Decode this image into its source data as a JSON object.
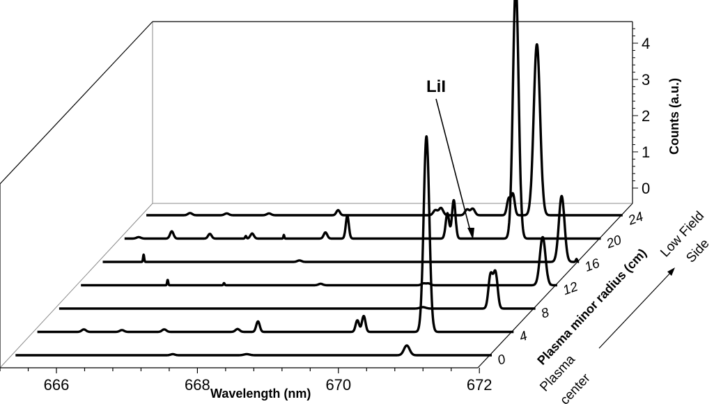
{
  "chart_data": {
    "type": "line",
    "subtype": "3d-waterfall",
    "title": "",
    "xlabel": "Wavelength (nm)",
    "ylabel": "Plasma minor radius (cm)",
    "zlabel": "Counts (a.u.)",
    "x_ticks": [
      "666",
      "668",
      "670",
      "672"
    ],
    "y_ticks": [
      "0",
      "4",
      "8",
      "12",
      "16",
      "20",
      "24"
    ],
    "z_ticks": [
      "0",
      "1",
      "2",
      "3",
      "4"
    ],
    "xlim": [
      665.2,
      672.0
    ],
    "zlim": [
      0,
      4.4
    ],
    "grid": false,
    "legend": null,
    "annotations": [
      {
        "text": "LiI",
        "points_to": {
          "radius": 12,
          "wavelength": 671.0
        }
      },
      {
        "text": "Low Field Side",
        "position": "upper end of radius axis"
      },
      {
        "text": "Plasma center",
        "position": "lower end of radius axis"
      }
    ],
    "series": [
      {
        "name": "0",
        "radius": 0,
        "peaks": [
          {
            "x": 667.65,
            "h": 0.03,
            "w": 0.03
          },
          {
            "x": 668.7,
            "h": 0.03,
            "w": 0.04
          },
          {
            "x": 670.97,
            "h": 0.27,
            "w": 0.04
          }
        ]
      },
      {
        "name": "4",
        "radius": 4,
        "peaks": [
          {
            "x": 666.08,
            "h": 0.07,
            "w": 0.03
          },
          {
            "x": 666.62,
            "h": 0.05,
            "w": 0.03
          },
          {
            "x": 667.22,
            "h": 0.07,
            "w": 0.03
          },
          {
            "x": 668.26,
            "h": 0.08,
            "w": 0.03
          },
          {
            "x": 668.55,
            "h": 0.29,
            "w": 0.025
          },
          {
            "x": 669.96,
            "h": 0.32,
            "w": 0.025
          },
          {
            "x": 670.05,
            "h": 0.44,
            "w": 0.025
          },
          {
            "x": 670.94,
            "h": 5.4,
            "w": 0.04
          }
        ]
      },
      {
        "name": "8",
        "radius": 8,
        "peaks": [
          {
            "x": 670.58,
            "h": 0.04,
            "w": 0.04
          },
          {
            "x": 671.54,
            "h": 0.92,
            "w": 0.03
          },
          {
            "x": 671.61,
            "h": 0.98,
            "w": 0.03
          }
        ]
      },
      {
        "name": "12",
        "radius": 12,
        "peaks": [
          {
            "x": 666.65,
            "h": 0.15,
            "w": 0.008
          },
          {
            "x": 667.45,
            "h": 0.06,
            "w": 0.008
          },
          {
            "x": 668.82,
            "h": 0.04,
            "w": 0.03
          },
          {
            "x": 670.28,
            "h": 0.05,
            "w": 0.03
          },
          {
            "x": 670.35,
            "h": 0.05,
            "w": 0.03
          },
          {
            "x": 671.97,
            "h": 1.33,
            "w": 0.04
          }
        ]
      },
      {
        "name": "16",
        "radius": 16,
        "peaks": [
          {
            "x": 666.0,
            "h": 0.2,
            "w": 0.008
          },
          {
            "x": 668.21,
            "h": 0.04,
            "w": 0.03
          },
          {
            "x": 671.93,
            "h": 1.82,
            "w": 0.04
          },
          {
            "x": 672.14,
            "h": 0.08,
            "w": 0.01
          }
        ]
      },
      {
        "name": "20",
        "radius": 20,
        "peaks": [
          {
            "x": 665.62,
            "h": 0.04,
            "w": 0.03
          },
          {
            "x": 666.09,
            "h": 0.2,
            "w": 0.025
          },
          {
            "x": 666.63,
            "h": 0.13,
            "w": 0.025
          },
          {
            "x": 667.14,
            "h": 0.07,
            "w": 0.01
          },
          {
            "x": 667.23,
            "h": 0.14,
            "w": 0.025
          },
          {
            "x": 667.68,
            "h": 0.1,
            "w": 0.007
          },
          {
            "x": 668.27,
            "h": 0.17,
            "w": 0.025
          },
          {
            "x": 668.58,
            "h": 0.63,
            "w": 0.022
          },
          {
            "x": 670.0,
            "h": 0.7,
            "w": 0.025
          },
          {
            "x": 670.09,
            "h": 1.06,
            "w": 0.025
          },
          {
            "x": 670.97,
            "h": 7.0,
            "w": 0.04
          }
        ]
      },
      {
        "name": "24",
        "radius": 24,
        "peaks": [
          {
            "x": 666.04,
            "h": 0.06,
            "w": 0.03
          },
          {
            "x": 666.56,
            "h": 0.05,
            "w": 0.03
          },
          {
            "x": 667.16,
            "h": 0.05,
            "w": 0.03
          },
          {
            "x": 668.14,
            "h": 0.14,
            "w": 0.025
          },
          {
            "x": 669.52,
            "h": 0.14,
            "w": 0.03
          },
          {
            "x": 669.6,
            "h": 0.2,
            "w": 0.03
          },
          {
            "x": 669.97,
            "h": 0.16,
            "w": 0.03
          },
          {
            "x": 670.05,
            "h": 0.18,
            "w": 0.03
          },
          {
            "x": 670.56,
            "h": 0.45,
            "w": 0.025
          },
          {
            "x": 670.62,
            "h": 0.58,
            "w": 0.025
          },
          {
            "x": 670.96,
            "h": 4.72,
            "w": 0.045
          }
        ]
      }
    ]
  },
  "labels": {
    "x_axis_title": "Wavelength (nm)",
    "z_axis_title": "Counts (a.u.)",
    "depth_axis_title": "Plasma minor radius (cm)",
    "annotation_lii": "LiI",
    "low_field_line1": "Low Field",
    "low_field_line2": "Side",
    "center_line1": "Plasma",
    "center_line2": "center"
  },
  "colors": {
    "trace": "#000000",
    "back_wall_edge": "#b0b0b0",
    "box_edge": "#000000"
  }
}
